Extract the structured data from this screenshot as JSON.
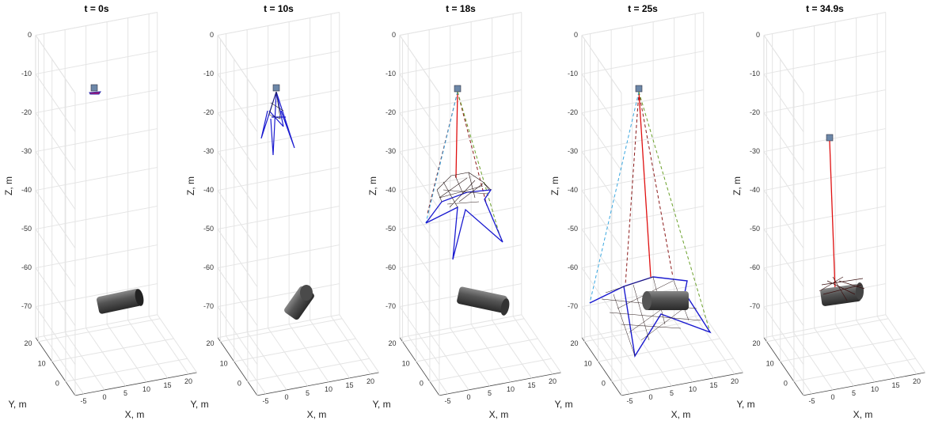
{
  "panels": [
    {
      "title": "t = 0s",
      "xlabel": "X, m",
      "ylabel": "Y, m",
      "zlabel": "Z, m",
      "xticks": [
        -5,
        0,
        5,
        10,
        15,
        20
      ],
      "yticks": [
        0,
        10,
        20
      ],
      "zticks": [
        0,
        -10,
        -20,
        -30,
        -40,
        -50,
        -60,
        -70
      ]
    },
    {
      "title": "t = 10s",
      "xlabel": "X, m",
      "ylabel": "Y, m",
      "zlabel": "Z, m",
      "xticks": [
        -5,
        0,
        5,
        10,
        15,
        20
      ],
      "yticks": [
        0,
        10,
        20
      ],
      "zticks": [
        0,
        -10,
        -20,
        -30,
        -40,
        -50,
        -60,
        -70
      ]
    },
    {
      "title": "t = 18s",
      "xlabel": "X, m",
      "ylabel": "Y, m",
      "zlabel": "Z, m",
      "xticks": [
        -5,
        0,
        5,
        10,
        15,
        20
      ],
      "yticks": [
        0,
        10,
        20
      ],
      "zticks": [
        0,
        -10,
        -20,
        -30,
        -40,
        -50,
        -60,
        -70
      ]
    },
    {
      "title": "t = 25s",
      "xlabel": "X, m",
      "ylabel": "Y, m",
      "zlabel": "Z, m",
      "xticks": [
        -5,
        0,
        5,
        10,
        15,
        20
      ],
      "yticks": [
        0,
        10,
        20
      ],
      "zticks": [
        0,
        -10,
        -20,
        -30,
        -40,
        -50,
        -60,
        -70
      ]
    },
    {
      "title": "t = 34.9s",
      "xlabel": "X, m",
      "ylabel": "Y, m",
      "zlabel": "Z, m",
      "xticks": [
        -5,
        0,
        5,
        10,
        15,
        20
      ],
      "yticks": [
        0,
        10,
        20
      ],
      "zticks": [
        0,
        -10,
        -20,
        -30,
        -40,
        -50,
        -60,
        -70
      ]
    }
  ]
}
